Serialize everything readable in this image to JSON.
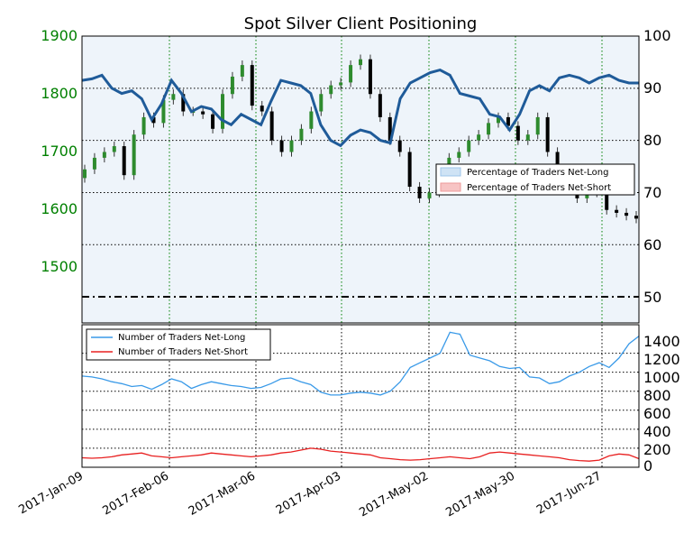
{
  "chart_data": [
    {
      "type": "candlestick+line",
      "title": "Spot Silver Client Positioning",
      "x_labels": [
        "2017-Jan-09",
        "2017-Feb-06",
        "2017-Mar-06",
        "2017-Apr-03",
        "2017-May-02",
        "2017-May-30",
        "2017-Jun-27"
      ],
      "y_left_ticks": [
        "1900",
        "1800",
        "1700",
        "1600",
        "1500"
      ],
      "y_right_ticks": [
        "100",
        "90",
        "80",
        "70",
        "60",
        "50"
      ],
      "y_left_range": [
        1405,
        1900
      ],
      "y_right_range": [
        45,
        100
      ],
      "reference_line_right": 50,
      "legend": [
        "Percentage of Traders Net-Long",
        "Percentage of Traders Net-Short"
      ],
      "net_long_pct": [
        91.5,
        91.8,
        92.5,
        90.0,
        89.0,
        89.5,
        88.0,
        84.0,
        87.0,
        91.5,
        89.0,
        85.5,
        86.5,
        86.0,
        84.0,
        83.0,
        85.0,
        84.0,
        83.0,
        87.5,
        91.5,
        91.0,
        90.5,
        89.0,
        83.0,
        80.0,
        79.0,
        81.0,
        82.0,
        81.5,
        80.0,
        79.5,
        88.0,
        91.0,
        92.0,
        93.0,
        93.5,
        92.5,
        89.0,
        88.5,
        88.0,
        85.0,
        84.5,
        82.0,
        85.0,
        89.5,
        90.5,
        89.5,
        92.0,
        92.5,
        92.0,
        91.0,
        92.0,
        92.5,
        91.5,
        91.0,
        91.0
      ],
      "price": {
        "open": [
          1655,
          1670,
          1690,
          1700,
          1710,
          1660,
          1730,
          1760,
          1750,
          1790,
          1800,
          1770,
          1770,
          1765,
          1740,
          1800,
          1830,
          1850,
          1780,
          1770,
          1720,
          1700,
          1720,
          1740,
          1770,
          1800,
          1815,
          1820,
          1850,
          1860,
          1800,
          1760,
          1720,
          1700,
          1640,
          1620,
          1630,
          1660,
          1690,
          1700,
          1720,
          1730,
          1750,
          1760,
          1745,
          1720,
          1730,
          1760,
          1700,
          1660,
          1650,
          1620,
          1630,
          1640,
          1600,
          1595,
          1590
        ],
        "close": [
          1670,
          1690,
          1700,
          1710,
          1660,
          1730,
          1760,
          1750,
          1790,
          1800,
          1770,
          1770,
          1765,
          1740,
          1800,
          1830,
          1850,
          1780,
          1770,
          1720,
          1700,
          1720,
          1740,
          1770,
          1800,
          1815,
          1820,
          1850,
          1860,
          1800,
          1760,
          1720,
          1700,
          1640,
          1620,
          1630,
          1660,
          1690,
          1700,
          1720,
          1730,
          1750,
          1760,
          1745,
          1720,
          1730,
          1760,
          1700,
          1660,
          1650,
          1620,
          1630,
          1640,
          1600,
          1595,
          1590,
          1585
        ]
      }
    },
    {
      "type": "line",
      "legend": [
        "Number of Traders Net-Long",
        "Number of Traders Net-Short"
      ],
      "y_right_ticks": [
        "1400",
        "1200",
        "1000",
        "800",
        "600",
        "400",
        "200",
        "0"
      ],
      "y_right_range": [
        0,
        1500
      ],
      "series": [
        {
          "values": [
            960,
            950,
            930,
            900,
            880,
            850,
            860,
            820,
            870,
            930,
            900,
            830,
            870,
            900,
            880,
            860,
            850,
            830,
            840,
            880,
            930,
            940,
            900,
            870,
            790,
            760,
            760,
            780,
            790,
            780,
            760,
            800,
            900,
            1050,
            1100,
            1150,
            1200,
            1420,
            1400,
            1180,
            1150,
            1120,
            1060,
            1040,
            1050,
            950,
            940,
            880,
            900,
            960,
            1000,
            1060,
            1100,
            1050,
            1150,
            1300,
            1380
          ]
        },
        {
          "values": [
            100,
            95,
            100,
            110,
            130,
            140,
            150,
            120,
            110,
            100,
            110,
            120,
            130,
            150,
            140,
            130,
            120,
            110,
            120,
            130,
            150,
            160,
            180,
            200,
            190,
            170,
            160,
            150,
            140,
            130,
            100,
            90,
            80,
            75,
            80,
            90,
            100,
            110,
            100,
            90,
            110,
            150,
            160,
            150,
            140,
            130,
            120,
            110,
            100,
            80,
            70,
            65,
            75,
            120,
            140,
            130,
            90
          ]
        }
      ]
    }
  ]
}
